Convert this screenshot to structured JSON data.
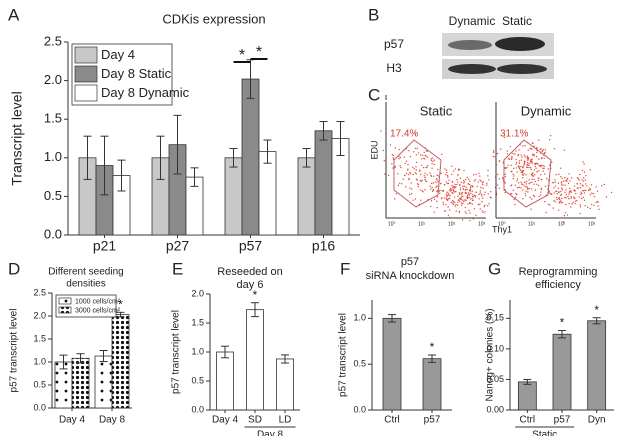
{
  "chart_data": [
    {
      "type": "bar",
      "panel": "A",
      "title": [
        "CDKis expression"
      ],
      "y_label": "Transcript level",
      "categories": [
        "p21",
        "p27",
        "p57",
        "p16"
      ],
      "series": [
        {
          "name": "Day 4",
          "color": "#c8c8c8",
          "values": [
            1.0,
            1.0,
            1.0,
            1.0
          ],
          "errors": [
            0.28,
            0.28,
            0.12,
            0.12
          ]
        },
        {
          "name": "Day 8 Static",
          "color": "#8a8a8a",
          "values": [
            0.9,
            1.17,
            2.02,
            1.35
          ],
          "errors": [
            0.38,
            0.38,
            0.25,
            0.12
          ]
        },
        {
          "name": "Day 8 Dynamic",
          "color": "#ffffff",
          "values": [
            0.77,
            0.75,
            1.08,
            1.25
          ],
          "errors": [
            0.2,
            0.12,
            0.15,
            0.22
          ]
        }
      ],
      "ylim": [
        0,
        2.5
      ],
      "yticks": [
        {
          "value": 0,
          "label": "0.0"
        },
        0.5,
        {
          "value": 1,
          "label": "1.0"
        },
        1.5,
        {
          "value": 2,
          "label": "2.0"
        },
        2.5
      ],
      "legend": "upper left",
      "annotations": [
        {
          "text": "*",
          "category": "p57",
          "series": [
            "Day 4",
            "Day 8 Static"
          ]
        },
        {
          "text": "*",
          "category": "p57",
          "series": [
            "Day 8 Static",
            "Day 8 Dynamic"
          ]
        }
      ]
    },
    {
      "type": "bar",
      "panel": "D",
      "title": [
        "Different seeding",
        "densities"
      ],
      "y_label": "p57 transcript level",
      "categories": [
        "Day 4",
        "Day 8"
      ],
      "series": [
        {
          "name": "1000 cells/cm²",
          "color": "#ffffff",
          "pattern": "sparse-dots",
          "values": [
            1.0,
            1.13
          ],
          "errors": [
            0.15,
            0.12
          ]
        },
        {
          "name": "3000 cells/cm²",
          "color": "#ffffff",
          "pattern": "dense-dots",
          "values": [
            1.08,
            2.03
          ],
          "errors": [
            0.1,
            0.05
          ]
        }
      ],
      "ylim": [
        0,
        2.5
      ],
      "yticks": [
        {
          "value": 0,
          "label": "0.0"
        },
        0.5,
        {
          "value": 1,
          "label": "1.0"
        },
        1.5,
        {
          "value": 2,
          "label": "2.0"
        },
        2.5
      ],
      "legend": "upper left",
      "annotations": [
        {
          "text": "*",
          "category": "Day 8",
          "series": "3000 cells/cm²"
        }
      ]
    },
    {
      "type": "bar",
      "panel": "E",
      "title": [
        "Reseeded on",
        "day 6"
      ],
      "y_label": "p57 transcript level",
      "categories": [
        "Day 4",
        "SD",
        "LD"
      ],
      "series": [
        {
          "color": "#ffffff",
          "values": [
            1.0,
            1.73,
            0.88
          ],
          "errors": [
            0.1,
            0.12,
            0.07
          ]
        }
      ],
      "ylim": [
        0,
        2.0
      ],
      "yticks": [
        {
          "value": 0,
          "label": "0.0"
        },
        0.5,
        {
          "value": 1,
          "label": "1.0"
        },
        1.5,
        {
          "value": 2,
          "label": "2.0"
        }
      ],
      "group": {
        "label": "Day 8",
        "categories": [
          "SD",
          "LD"
        ]
      },
      "annotations": [
        {
          "text": "*",
          "category": "SD"
        }
      ]
    },
    {
      "type": "bar",
      "panel": "F",
      "title": [
        "p57",
        "siRNA knockdown"
      ],
      "y_label": "p57 transcript level",
      "categories": [
        "Ctrl",
        "p57"
      ],
      "series": [
        {
          "color": "#999999",
          "values": [
            1.0,
            0.56
          ],
          "errors": [
            0.04,
            0.04
          ]
        }
      ],
      "ylim": [
        0,
        1.2
      ],
      "yticks": [
        {
          "value": 0,
          "label": "0.0"
        },
        0.5,
        {
          "value": 1,
          "label": "1.0"
        }
      ],
      "annotations": [
        {
          "text": "*",
          "category": "p57"
        }
      ]
    },
    {
      "type": "bar",
      "panel": "G",
      "title": [
        "Reprogramming",
        "efficiency"
      ],
      "y_label": "Nanog+ colonies (%)",
      "categories": [
        "Ctrl",
        "p57",
        "Dyn"
      ],
      "series": [
        {
          "color": "#999999",
          "values": [
            0.046,
            0.124,
            0.146
          ],
          "errors": [
            0.004,
            0.006,
            0.005
          ]
        }
      ],
      "ylim": [
        0,
        0.18
      ],
      "yticks": [
        {
          "value": 0,
          "label": "0.00"
        },
        0.05,
        {
          "value": 0.1,
          "label": "0.10"
        },
        0.15
      ],
      "group": {
        "label": "Static",
        "categories": [
          "Ctrl",
          "p57"
        ]
      },
      "annotations": [
        {
          "text": "*",
          "category": "p57"
        },
        {
          "text": "*",
          "category": "Dyn"
        }
      ]
    }
  ],
  "blot": {
    "panel": "B",
    "lanes": [
      "Dynamic",
      "Static"
    ],
    "rows": [
      "p57",
      "H3"
    ]
  },
  "flow": {
    "panel": "C",
    "y_label": "EDU",
    "x_label": "Thy1",
    "tick_labels": [
      "10⁰",
      "10¹",
      "10²",
      "10³"
    ],
    "plots": [
      {
        "label": "Static",
        "percent": "17.4%"
      },
      {
        "label": "Dynamic",
        "percent": "31.1%"
      }
    ]
  }
}
